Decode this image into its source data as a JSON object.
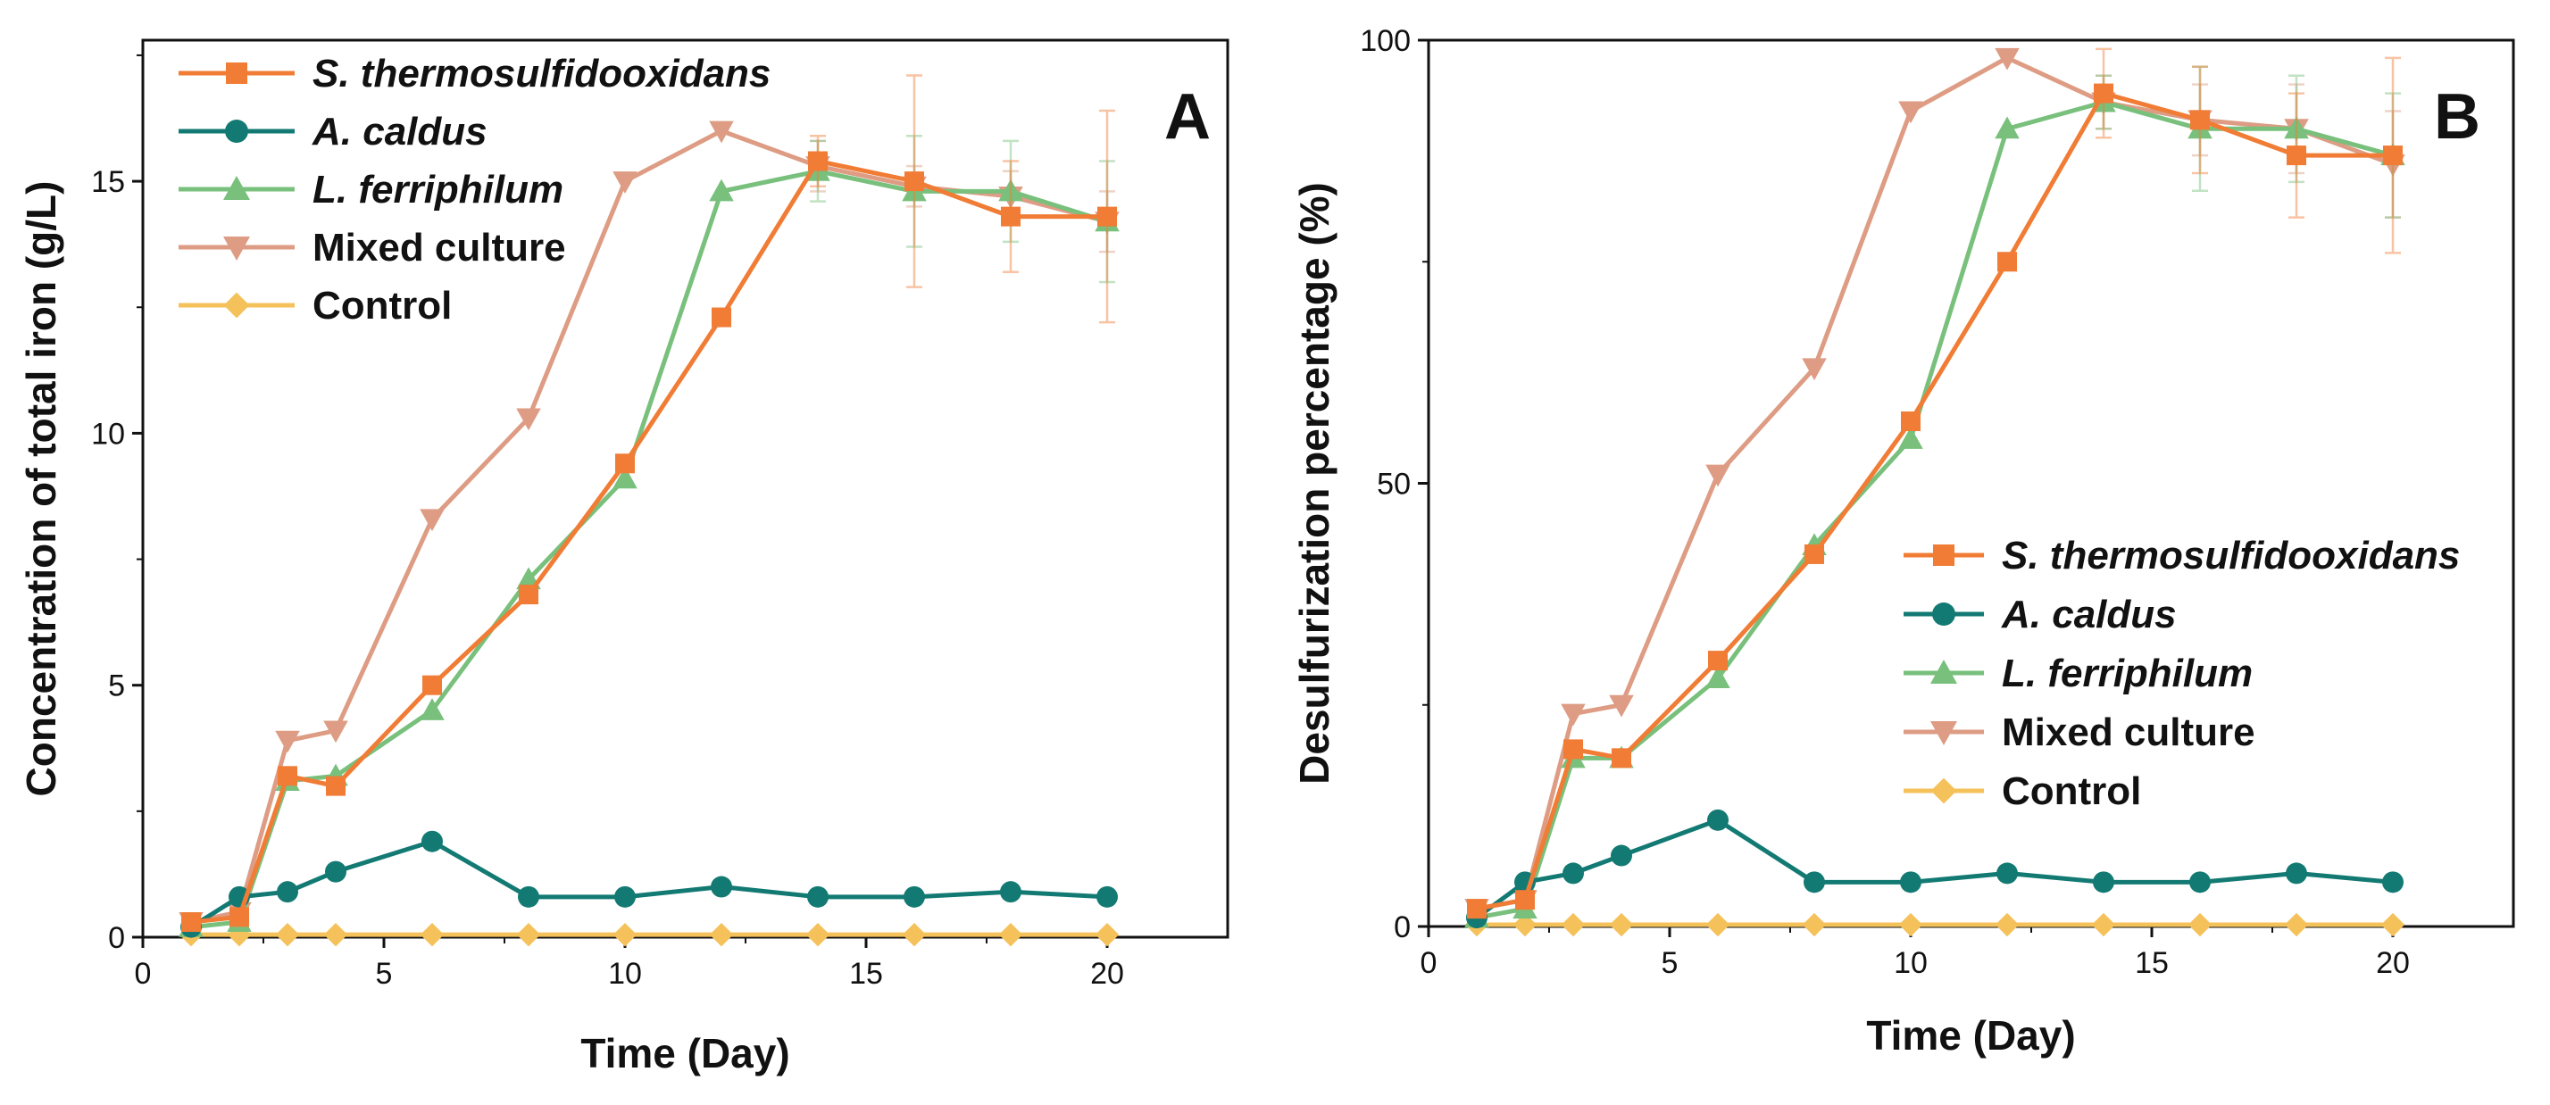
{
  "figure": "bioleaching-comparison",
  "chart_data": [
    {
      "type": "line",
      "panel_label": "A",
      "title": "",
      "xlabel": "Time (Day)",
      "ylabel": "Concentration of total iron (g/L)",
      "xlim": [
        0,
        22.5
      ],
      "ylim": [
        0,
        17.8
      ],
      "xticks": [
        0,
        5,
        10,
        15,
        20
      ],
      "yticks": [
        0,
        5,
        10,
        15
      ],
      "grid": false,
      "legend_position": "top-left",
      "x": [
        1,
        2,
        3,
        4,
        6,
        8,
        10,
        12,
        14,
        16,
        18,
        20
      ],
      "series": [
        {
          "name": "S. thermosulfidooxidans",
          "italic": true,
          "color": "#f07c35",
          "marker": "square",
          "values": [
            0.3,
            0.4,
            3.2,
            3.0,
            5.0,
            6.8,
            9.4,
            12.3,
            15.4,
            15.0,
            14.3,
            14.3
          ],
          "errors": [
            0,
            0,
            0,
            0,
            0,
            0,
            0,
            0,
            0.5,
            2.1,
            1.1,
            2.1
          ]
        },
        {
          "name": "A. caldus",
          "italic": true,
          "color": "#137a73",
          "marker": "circle",
          "values": [
            0.2,
            0.8,
            0.9,
            1.3,
            1.9,
            0.8,
            0.8,
            1.0,
            0.8,
            0.8,
            0.9,
            0.8
          ],
          "errors": [
            0,
            0,
            0,
            0,
            0,
            0,
            0,
            0,
            0,
            0,
            0,
            0
          ]
        },
        {
          "name": "L. ferriphilum",
          "italic": true,
          "color": "#78c07c",
          "marker": "triangle-up",
          "values": [
            0.2,
            0.3,
            3.1,
            3.2,
            4.5,
            7.1,
            9.1,
            14.8,
            15.2,
            14.8,
            14.8,
            14.2
          ],
          "errors": [
            0,
            0,
            0,
            0,
            0,
            0,
            0,
            0,
            0.6,
            1.1,
            1.0,
            1.2
          ]
        },
        {
          "name": "Mixed culture",
          "italic": false,
          "color": "#dd9c83",
          "marker": "triangle-down",
          "values": [
            0.3,
            0.5,
            3.9,
            4.1,
            8.3,
            10.3,
            15.0,
            16.0,
            15.3,
            14.9,
            14.7,
            14.2
          ],
          "errors": [
            0,
            0,
            0,
            0,
            0,
            0,
            0,
            0,
            0.5,
            0.4,
            0.5,
            0.6
          ]
        },
        {
          "name": "Control",
          "italic": false,
          "color": "#f5c15a",
          "marker": "diamond",
          "values": [
            0.05,
            0.05,
            0.05,
            0.05,
            0.05,
            0.05,
            0.05,
            0.05,
            0.05,
            0.05,
            0.05,
            0.05
          ],
          "errors": [
            0,
            0,
            0,
            0,
            0,
            0,
            0,
            0,
            0,
            0,
            0,
            0
          ]
        }
      ]
    },
    {
      "type": "line",
      "panel_label": "B",
      "title": "",
      "xlabel": "Time (Day)",
      "ylabel": "Desulfurization percentage (%)",
      "xlim": [
        0,
        22.5
      ],
      "ylim": [
        0,
        100
      ],
      "xticks": [
        0,
        5,
        10,
        15,
        20
      ],
      "yticks": [
        0,
        50,
        100
      ],
      "grid": false,
      "legend_position": "middle-right",
      "x": [
        1,
        2,
        3,
        4,
        6,
        8,
        10,
        12,
        14,
        16,
        18,
        20
      ],
      "series": [
        {
          "name": "S. thermosulfidooxidans",
          "italic": true,
          "color": "#f07c35",
          "marker": "square",
          "values": [
            2,
            3,
            20,
            19,
            30,
            42,
            57,
            75,
            94,
            91,
            87,
            87
          ],
          "errors": [
            0,
            0,
            0,
            0,
            0,
            0,
            0,
            0,
            5,
            6,
            7,
            11
          ]
        },
        {
          "name": "A. caldus",
          "italic": true,
          "color": "#137a73",
          "marker": "circle",
          "values": [
            1,
            5,
            6,
            8,
            12,
            5,
            5,
            6,
            5,
            5,
            6,
            5
          ],
          "errors": [
            0,
            0,
            0,
            0,
            0,
            0,
            0,
            0,
            0,
            0,
            0,
            0
          ]
        },
        {
          "name": "L. ferriphilum",
          "italic": true,
          "color": "#78c07c",
          "marker": "triangle-up",
          "values": [
            1,
            2,
            19,
            19,
            28,
            43,
            55,
            90,
            93,
            90,
            90,
            87
          ],
          "errors": [
            0,
            0,
            0,
            0,
            0,
            0,
            0,
            0,
            3,
            7,
            6,
            7
          ]
        },
        {
          "name": "Mixed culture",
          "italic": false,
          "color": "#dd9c83",
          "marker": "triangle-down",
          "values": [
            2,
            3,
            24,
            25,
            51,
            63,
            92,
            98,
            93,
            91,
            90,
            86
          ],
          "errors": [
            0,
            0,
            0,
            0,
            0,
            0,
            0,
            0,
            3,
            4,
            5,
            6
          ]
        },
        {
          "name": "Control",
          "italic": false,
          "color": "#f5c15a",
          "marker": "diamond",
          "values": [
            0.2,
            0.2,
            0.2,
            0.2,
            0.2,
            0.2,
            0.2,
            0.2,
            0.2,
            0.2,
            0.2,
            0.2
          ],
          "errors": [
            0,
            0,
            0,
            0,
            0,
            0,
            0,
            0,
            0,
            0,
            0,
            0
          ]
        }
      ]
    }
  ]
}
